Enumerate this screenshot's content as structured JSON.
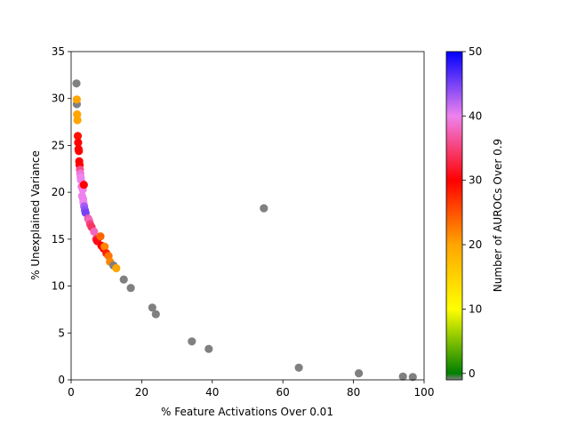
{
  "chart_data": {
    "type": "scatter",
    "xlabel": "% Feature Activations Over 0.01",
    "ylabel": "% Unexplained Variance",
    "xlim": [
      0,
      100
    ],
    "ylim": [
      0,
      35
    ],
    "xticks": [
      0,
      20,
      40,
      60,
      80,
      100
    ],
    "yticks": [
      0,
      5,
      10,
      15,
      20,
      25,
      30,
      35
    ],
    "grid": false,
    "colorbar": {
      "label": "Number of AUROCs Over 0.9",
      "min": -1,
      "max": 50,
      "ticks": [
        0,
        10,
        20,
        30,
        40,
        50
      ],
      "stops": [
        {
          "v": -1,
          "color": "#808080"
        },
        {
          "v": 0,
          "color": "#008000"
        },
        {
          "v": 10,
          "color": "#ffff00"
        },
        {
          "v": 20,
          "color": "#ffa500"
        },
        {
          "v": 30,
          "color": "#ff0000"
        },
        {
          "v": 40,
          "color": "#ee82ee"
        },
        {
          "v": 50,
          "color": "#0000ff"
        }
      ]
    },
    "points": [
      {
        "x": 1.5,
        "y": 31.6,
        "c": -1
      },
      {
        "x": 1.6,
        "y": 29.4,
        "c": -1
      },
      {
        "x": 1.6,
        "y": 29.9,
        "c": 20
      },
      {
        "x": 1.7,
        "y": 28.3,
        "c": 20
      },
      {
        "x": 1.8,
        "y": 27.7,
        "c": 20
      },
      {
        "x": 1.9,
        "y": 26.0,
        "c": 29
      },
      {
        "x": 2.0,
        "y": 25.3,
        "c": 30
      },
      {
        "x": 2.1,
        "y": 24.6,
        "c": 30
      },
      {
        "x": 2.2,
        "y": 24.4,
        "c": 30
      },
      {
        "x": 2.3,
        "y": 23.3,
        "c": 30
      },
      {
        "x": 2.4,
        "y": 22.9,
        "c": 30
      },
      {
        "x": 2.5,
        "y": 22.4,
        "c": 36
      },
      {
        "x": 2.6,
        "y": 22.0,
        "c": 39
      },
      {
        "x": 2.7,
        "y": 21.6,
        "c": 40
      },
      {
        "x": 2.8,
        "y": 21.3,
        "c": 40
      },
      {
        "x": 3.0,
        "y": 20.6,
        "c": 39
      },
      {
        "x": 3.3,
        "y": 20.3,
        "c": 40
      },
      {
        "x": 3.6,
        "y": 20.8,
        "c": 30
      },
      {
        "x": 3.1,
        "y": 19.6,
        "c": 40
      },
      {
        "x": 3.4,
        "y": 19.3,
        "c": 40
      },
      {
        "x": 3.5,
        "y": 18.9,
        "c": 40
      },
      {
        "x": 3.7,
        "y": 18.5,
        "c": 43
      },
      {
        "x": 3.9,
        "y": 18.1,
        "c": 44
      },
      {
        "x": 4.1,
        "y": 17.8,
        "c": 45
      },
      {
        "x": 4.8,
        "y": 17.2,
        "c": 37
      },
      {
        "x": 5.1,
        "y": 17.0,
        "c": 38
      },
      {
        "x": 5.4,
        "y": 16.6,
        "c": 35
      },
      {
        "x": 5.8,
        "y": 16.3,
        "c": 34
      },
      {
        "x": 6.5,
        "y": 15.8,
        "c": 38
      },
      {
        "x": 7.1,
        "y": 15.0,
        "c": 33
      },
      {
        "x": 7.4,
        "y": 14.8,
        "c": 31
      },
      {
        "x": 8.3,
        "y": 15.3,
        "c": 24
      },
      {
        "x": 8.6,
        "y": 14.3,
        "c": 30
      },
      {
        "x": 9.2,
        "y": 14.0,
        "c": 30
      },
      {
        "x": 9.5,
        "y": 14.2,
        "c": 22
      },
      {
        "x": 10.0,
        "y": 13.5,
        "c": 28
      },
      {
        "x": 10.6,
        "y": 13.2,
        "c": 23
      },
      {
        "x": 11.0,
        "y": 12.6,
        "c": 22
      },
      {
        "x": 12.0,
        "y": 12.2,
        "c": -1
      },
      {
        "x": 12.8,
        "y": 11.9,
        "c": 20
      },
      {
        "x": 14.9,
        "y": 10.7,
        "c": -1
      },
      {
        "x": 16.9,
        "y": 9.8,
        "c": -1
      },
      {
        "x": 23.0,
        "y": 7.7,
        "c": -1
      },
      {
        "x": 24.0,
        "y": 7.0,
        "c": -1
      },
      {
        "x": 34.2,
        "y": 4.1,
        "c": -1
      },
      {
        "x": 39.0,
        "y": 3.3,
        "c": -1
      },
      {
        "x": 54.6,
        "y": 18.3,
        "c": -1
      },
      {
        "x": 64.5,
        "y": 1.3,
        "c": -1
      },
      {
        "x": 81.5,
        "y": 0.7,
        "c": -1
      },
      {
        "x": 94.0,
        "y": 0.35,
        "c": -1
      },
      {
        "x": 96.8,
        "y": 0.3,
        "c": -1
      }
    ]
  }
}
